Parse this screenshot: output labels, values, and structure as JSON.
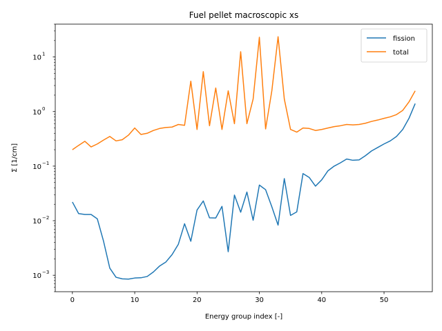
{
  "chart_data": {
    "type": "line",
    "title": "Fuel pellet macroscopic xs",
    "xlabel": "Energy group index [-]",
    "ylabel": "Σ [1/cm]",
    "yscale": "log",
    "xlim": [
      -2.75,
      57.75
    ],
    "ylim": [
      0.0005,
      40
    ],
    "xticks": [
      0,
      10,
      20,
      30,
      40,
      50
    ],
    "yticks": [
      0.001,
      0.01,
      0.1,
      1,
      10
    ],
    "ytick_labels": [
      "10",
      "10",
      "10",
      "10",
      "10"
    ],
    "ytick_exponents": [
      "−3",
      "−2",
      "−1",
      "0",
      "1"
    ],
    "grid": false,
    "legend_position": "top-right",
    "series": [
      {
        "name": "fission",
        "color": "#1f77b4",
        "x": [
          0,
          1,
          2,
          3,
          4,
          5,
          6,
          7,
          8,
          9,
          10,
          11,
          12,
          13,
          14,
          15,
          16,
          17,
          18,
          19,
          20,
          21,
          22,
          23,
          24,
          25,
          26,
          27,
          28,
          29,
          30,
          31,
          32,
          33,
          34,
          35,
          36,
          37,
          38,
          39,
          40,
          41,
          42,
          43,
          44,
          45,
          46,
          47,
          48,
          49,
          50,
          51,
          52,
          53,
          54,
          55
        ],
        "values": [
          0.022,
          0.0135,
          0.013,
          0.013,
          0.0108,
          0.0042,
          0.00135,
          0.00092,
          0.00086,
          0.00085,
          0.00089,
          0.0009,
          0.00095,
          0.00115,
          0.00148,
          0.00175,
          0.0024,
          0.0037,
          0.0088,
          0.0042,
          0.0157,
          0.023,
          0.0113,
          0.0112,
          0.0183,
          0.0027,
          0.0295,
          0.0143,
          0.0335,
          0.0102,
          0.045,
          0.037,
          0.018,
          0.0083,
          0.059,
          0.0125,
          0.0145,
          0.073,
          0.062,
          0.043,
          0.056,
          0.082,
          0.1,
          0.115,
          0.135,
          0.128,
          0.13,
          0.155,
          0.19,
          0.22,
          0.255,
          0.29,
          0.35,
          0.47,
          0.75,
          1.4
        ]
      },
      {
        "name": "total",
        "color": "#ff7f0e",
        "x": [
          0,
          1,
          2,
          3,
          4,
          5,
          6,
          7,
          8,
          9,
          10,
          11,
          12,
          13,
          14,
          15,
          16,
          17,
          18,
          19,
          20,
          21,
          22,
          23,
          24,
          25,
          26,
          27,
          28,
          29,
          30,
          31,
          32,
          33,
          34,
          35,
          36,
          37,
          38,
          39,
          40,
          41,
          42,
          43,
          44,
          45,
          46,
          47,
          48,
          49,
          50,
          51,
          52,
          53,
          54,
          55
        ],
        "values": [
          0.2,
          0.24,
          0.285,
          0.225,
          0.255,
          0.3,
          0.35,
          0.29,
          0.305,
          0.37,
          0.5,
          0.38,
          0.4,
          0.45,
          0.49,
          0.51,
          0.52,
          0.58,
          0.56,
          3.6,
          0.47,
          5.4,
          0.55,
          2.7,
          0.47,
          2.4,
          0.6,
          12.5,
          0.6,
          1.7,
          23,
          0.48,
          2.4,
          23.5,
          1.7,
          0.47,
          0.42,
          0.5,
          0.49,
          0.45,
          0.47,
          0.5,
          0.53,
          0.55,
          0.58,
          0.57,
          0.58,
          0.61,
          0.66,
          0.7,
          0.75,
          0.8,
          0.88,
          1.05,
          1.5,
          2.4
        ]
      }
    ]
  }
}
